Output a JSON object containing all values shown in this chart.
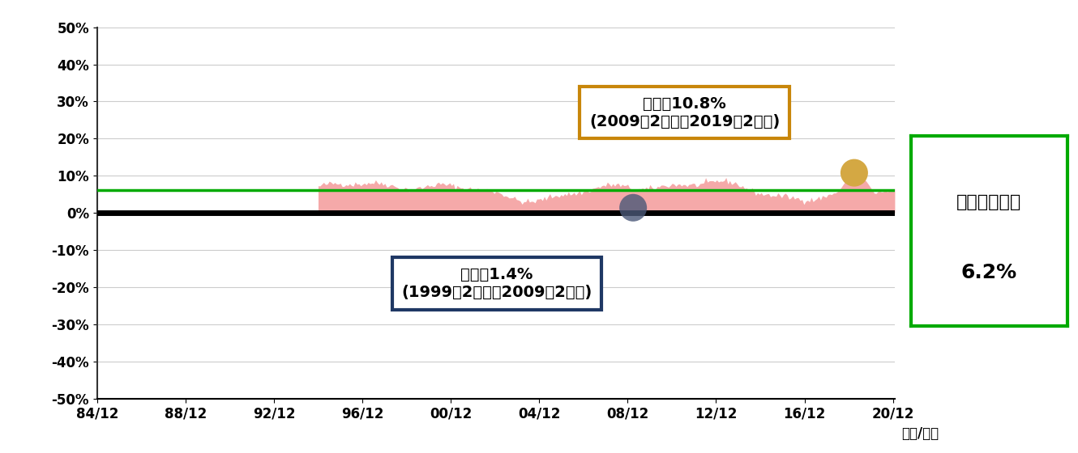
{
  "x_start": 1984.917,
  "x_end": 2021.0,
  "x_ticks": [
    1984.917,
    1988.917,
    1992.917,
    1996.917,
    2000.917,
    2004.917,
    2008.917,
    2012.917,
    2016.917,
    2020.917
  ],
  "x_tick_labels": [
    "84/12",
    "88/12",
    "92/12",
    "96/12",
    "00/12",
    "04/12",
    "08/12",
    "12/12",
    "16/12",
    "20/12"
  ],
  "x_label": "（年/月）",
  "y_min": -50,
  "y_max": 50,
  "y_ticks": [
    -50,
    -40,
    -30,
    -20,
    -10,
    0,
    10,
    20,
    30,
    40,
    50
  ],
  "y_tick_labels": [
    "-50%",
    "-40%",
    "-30%",
    "-20%",
    "-10%",
    "0%",
    "10%",
    "20%",
    "30%",
    "40%",
    "50%"
  ],
  "avg_return": 6.2,
  "max_return": 10.8,
  "min_return": 1.4,
  "max_dot_x": 2019.167,
  "max_dot_y": 10.8,
  "min_dot_x": 2009.167,
  "min_dot_y": 1.4,
  "area_color": "#F4A0A0",
  "area_alpha": 0.9,
  "avg_line_color": "#00AA00",
  "zero_line_color": "#000000",
  "max_box_color": "#C8860A",
  "min_box_color": "#1F3864",
  "avg_box_color": "#00AA00",
  "background_color": "#FFFFFF",
  "data_start_x": 1994.917,
  "noise_seed": 42,
  "max_box_text_line1": "最大値10.8%",
  "max_box_text_line2": "(2009年2月末～2019年2月末)",
  "min_box_text_line1": "最小値1.4%",
  "min_box_text_line2": "(1999年2月末～2009年2月末)",
  "avg_box_text_line1": "平均リターン",
  "avg_box_text_line2": "6.2%"
}
